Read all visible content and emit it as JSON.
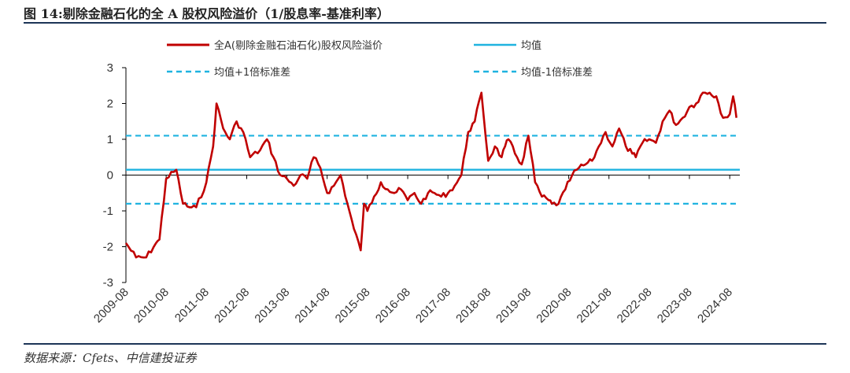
{
  "header": {
    "title": "图 14:剔除金融石化的全 A 股权风险溢价（1/股息率-基准利率）"
  },
  "footer": {
    "source": "数据来源：Cfets、中信建投证券"
  },
  "colors": {
    "main": "#c00000",
    "mean": "#1fb3e0",
    "band": "#1fb3e0",
    "rule": "#1d3557"
  },
  "chart_data": {
    "type": "line",
    "title": "剔除金融石化的全 A 股权风险溢价（1/股息率-基准利率）",
    "ylim": [
      -3,
      3
    ],
    "y_ticks": [
      "3",
      "2",
      "1",
      "0",
      "-1",
      "-2",
      "-3"
    ],
    "x_ticks": [
      "2009-08",
      "2010-08",
      "2011-08",
      "2012-08",
      "2013-08",
      "2014-08",
      "2015-08",
      "2016-08",
      "2017-08",
      "2018-08",
      "2019-08",
      "2020-08",
      "2021-08",
      "2022-08",
      "2023-08",
      "2024-08"
    ],
    "legend": [
      {
        "label": "全A(剔除金融石油石化)股权风险溢价",
        "style": "solid-thick",
        "color": "#c00000"
      },
      {
        "label": "均值",
        "style": "solid",
        "color": "#1fb3e0"
      },
      {
        "label": "均值+1倍标准差",
        "style": "dashed",
        "color": "#1fb3e0"
      },
      {
        "label": "均值-1倍标准差",
        "style": "dashed",
        "color": "#1fb3e0"
      }
    ],
    "reference_lines": {
      "mean": 0.15,
      "upper": 1.1,
      "lower": -0.8
    },
    "series": [
      {
        "name": "全A(剔除金融石油石化)股权风险溢价",
        "x": [
          "2009-08",
          "2009-11",
          "2010-02",
          "2010-05",
          "2010-06",
          "2010-08",
          "2010-11",
          "2011-01",
          "2011-03",
          "2011-05",
          "2011-08",
          "2011-10",
          "2011-11",
          "2012-01",
          "2012-03",
          "2012-05",
          "2012-07",
          "2012-09",
          "2012-12",
          "2013-02",
          "2013-04",
          "2013-06",
          "2013-08",
          "2013-10",
          "2013-12",
          "2014-02",
          "2014-04",
          "2014-06",
          "2014-08",
          "2014-10",
          "2014-12",
          "2015-02",
          "2015-04",
          "2015-06",
          "2015-07",
          "2015-08",
          "2015-10",
          "2015-12",
          "2016-02",
          "2016-04",
          "2016-06",
          "2016-08",
          "2016-10",
          "2016-12",
          "2017-02",
          "2017-04",
          "2017-06",
          "2017-08",
          "2017-10",
          "2017-12",
          "2018-02",
          "2018-04",
          "2018-06",
          "2018-08",
          "2018-10",
          "2018-12",
          "2019-01",
          "2019-02",
          "2019-04",
          "2019-06",
          "2019-08",
          "2019-10",
          "2019-12",
          "2020-02",
          "2020-03",
          "2020-05",
          "2020-07",
          "2020-09",
          "2020-11",
          "2021-01",
          "2021-03",
          "2021-05",
          "2021-07",
          "2021-09",
          "2021-11",
          "2022-01",
          "2022-03",
          "2022-04",
          "2022-06",
          "2022-08",
          "2022-10",
          "2022-12",
          "2023-02",
          "2023-04",
          "2023-06",
          "2023-08",
          "2023-10",
          "2023-12",
          "2024-02",
          "2024-04",
          "2024-06",
          "2024-08",
          "2024-09",
          "2024-10"
        ],
        "values": [
          -1.9,
          -2.3,
          -2.3,
          -1.9,
          -1.8,
          -0.1,
          0.15,
          -0.8,
          -0.9,
          -0.9,
          -0.2,
          0.8,
          2.0,
          1.3,
          1.0,
          1.5,
          1.2,
          0.5,
          0.7,
          1.0,
          0.5,
          0.0,
          -0.1,
          -0.3,
          0.0,
          -0.1,
          0.5,
          0.2,
          -0.5,
          -0.3,
          0.0,
          -0.8,
          -1.5,
          -2.1,
          -0.8,
          -1.0,
          -0.6,
          -0.2,
          -0.4,
          -0.5,
          -0.4,
          -0.7,
          -0.5,
          -0.8,
          -0.5,
          -0.5,
          -0.6,
          -0.5,
          -0.3,
          0.0,
          1.2,
          1.5,
          2.3,
          0.4,
          0.8,
          0.5,
          0.8,
          1.0,
          0.6,
          0.3,
          1.1,
          -0.2,
          -0.6,
          -0.7,
          -0.8,
          -0.8,
          -0.4,
          0.0,
          0.2,
          0.3,
          0.4,
          0.8,
          1.2,
          0.8,
          1.3,
          0.8,
          0.6,
          0.5,
          0.9,
          1.0,
          0.9,
          1.5,
          1.8,
          1.4,
          1.6,
          1.9,
          2.0,
          2.3,
          2.3,
          2.2,
          1.6,
          1.7,
          2.2,
          1.6
        ]
      }
    ]
  }
}
